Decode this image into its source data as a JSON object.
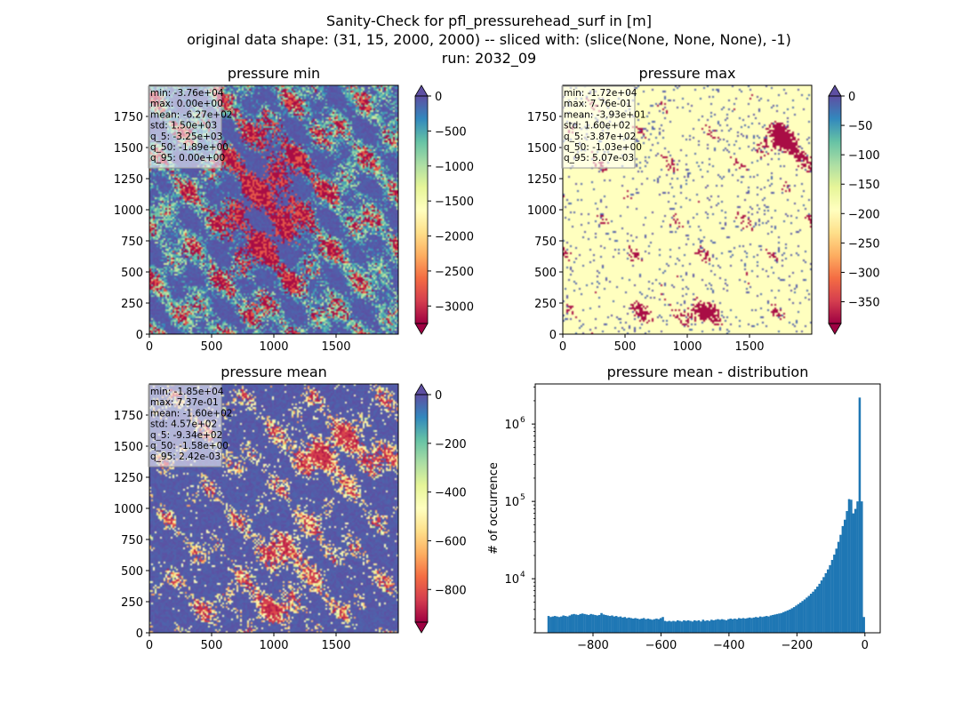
{
  "figure": {
    "title_lines": [
      "Sanity-Check for pfl_pressurehead_surf in [m]",
      "original data shape: (31, 15, 2000, 2000) -- sliced with: (slice(None, None, None), -1)",
      "run: 2032_09"
    ]
  },
  "colors": {
    "spectral": [
      "#9e0142",
      "#d53e4f",
      "#f46d43",
      "#fdae61",
      "#fee08b",
      "#ffffbf",
      "#e6f598",
      "#abdda4",
      "#66c2a5",
      "#3288bd",
      "#5e4fa2"
    ],
    "hist_bar": "#1f77b4",
    "background_max": "#ffffbf",
    "background_min": "#5e4fa2"
  },
  "chart_data": [
    {
      "type": "heatmap",
      "title": "pressure min",
      "xlim": [
        0,
        2000
      ],
      "ylim": [
        0,
        2000
      ],
      "xticks": [
        "0",
        "500",
        "1000",
        "1500"
      ],
      "yticks": [
        "0",
        "250",
        "500",
        "750",
        "1000",
        "1250",
        "1500",
        "1750"
      ],
      "colorbar": {
        "vmin": -3250,
        "vmax": 0,
        "ticks": [
          "0",
          "−500",
          "−1000",
          "−1500",
          "−2000",
          "−2500",
          "−3000"
        ],
        "extend": "both"
      },
      "stats": [
        "min: -3.76e+04",
        "max: 0.00e+00",
        "mean: -6.27e+02",
        "std: 1.50e+03",
        "q_5: -3.25e+03",
        "q_50: -1.89e+00",
        "q_95: 0.00e+00"
      ]
    },
    {
      "type": "heatmap",
      "title": "pressure max",
      "xlim": [
        0,
        2000
      ],
      "ylim": [
        0,
        2000
      ],
      "xticks": [
        "0",
        "500",
        "1000",
        "1500"
      ],
      "yticks": [
        "0",
        "250",
        "500",
        "750",
        "1000",
        "1250",
        "1500",
        "1750"
      ],
      "colorbar": {
        "vmin": -387,
        "vmax": 0,
        "ticks": [
          "0",
          "−50",
          "−100",
          "−150",
          "−200",
          "−250",
          "−300",
          "−350"
        ],
        "extend": "both"
      },
      "stats": [
        "min: -1.72e+04",
        "max: 7.76e-01",
        "mean: -3.93e+01",
        "std: 1.60e+02",
        "q_5: -3.87e+02",
        "q_50: -1.03e+00",
        "q_95: 5.07e-03"
      ]
    },
    {
      "type": "heatmap",
      "title": "pressure mean",
      "xlim": [
        0,
        2000
      ],
      "ylim": [
        0,
        2000
      ],
      "xticks": [
        "0",
        "500",
        "1000",
        "1500"
      ],
      "yticks": [
        "0",
        "250",
        "500",
        "750",
        "1000",
        "1250",
        "1500",
        "1750"
      ],
      "colorbar": {
        "vmin": -934,
        "vmax": 0,
        "ticks": [
          "0",
          "−200",
          "−400",
          "−600",
          "−800"
        ],
        "extend": "both"
      },
      "stats": [
        "min: -1.85e+04",
        "max: 7.37e-01",
        "mean: -1.60e+02",
        "std: 4.57e+02",
        "q_5: -9.34e+02",
        "q_50: -1.58e+00",
        "q_95: 2.42e-03"
      ]
    },
    {
      "type": "bar",
      "title": "pressure mean - distribution",
      "ylabel": "# of occurrence",
      "yscale": "log",
      "xlim": [
        -970,
        45
      ],
      "ylim": [
        2000,
        3300000
      ],
      "xticks": [
        "−800",
        "−600",
        "−400",
        "−200",
        "0"
      ],
      "yticks": [
        "10^4",
        "10^5",
        "10^6"
      ],
      "bin_range": [
        -934,
        0
      ],
      "bins": 150,
      "counts": [
        3300,
        3200,
        3250,
        3300,
        3250,
        3200,
        3250,
        3350,
        3300,
        3250,
        3350,
        3450,
        3500,
        3450,
        3400,
        3500,
        3550,
        3500,
        3450,
        3400,
        3500,
        3450,
        3400,
        3350,
        3400,
        3600,
        3450,
        3400,
        3350,
        3300,
        3350,
        3250,
        3300,
        3200,
        3250,
        3150,
        3200,
        3100,
        3150,
        3100,
        3050,
        3100,
        3050,
        3000,
        3050,
        3100,
        3000,
        3050,
        3000,
        2950,
        3000,
        3050,
        3000,
        3100,
        3200,
        2850,
        2800,
        2850,
        2800,
        2850,
        2800,
        2900,
        2850,
        2800,
        2900,
        2850,
        2900,
        2850,
        2800,
        2900,
        2850,
        2900,
        2800,
        2950,
        2850,
        2900,
        2850,
        2950,
        2900,
        2950,
        3000,
        2950,
        3000,
        2950,
        2900,
        3000,
        3050,
        3000,
        3050,
        3000,
        3100,
        3050,
        3100,
        3050,
        3100,
        3150,
        3100,
        3150,
        3200,
        3150,
        3250,
        3200,
        3250,
        3300,
        3250,
        3350,
        3400,
        3450,
        3500,
        3550,
        3600,
        3700,
        3800,
        3900,
        4000,
        4150,
        4300,
        4500,
        4700,
        4900,
        5150,
        5400,
        5700,
        6000,
        6400,
        6800,
        7300,
        7900,
        8600,
        9500,
        10500,
        11800,
        13200,
        15000,
        17500,
        20500,
        24500,
        30000,
        37000,
        48000,
        58000,
        75000,
        107000,
        105000,
        70000,
        80000,
        100000,
        2200000,
        100000,
        3200
      ]
    }
  ]
}
